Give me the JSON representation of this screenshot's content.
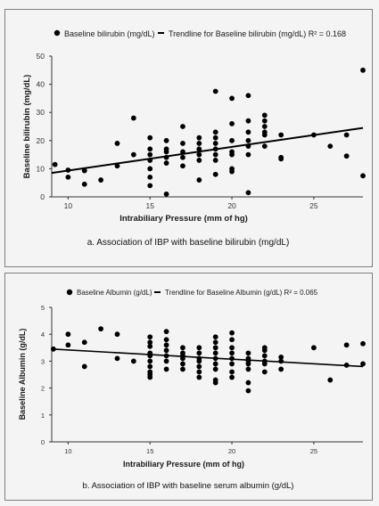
{
  "chart_data": [
    {
      "type": "scatter",
      "caption": "a. Association of IBP with baseline bilirubin (mg/dL)",
      "xlabel": "Intrabiliary Pressure (mm of hg)",
      "ylabel": "Baseline bilirubin (mg/dL)",
      "xlim": [
        9,
        28
      ],
      "ylim": [
        0,
        50
      ],
      "xticks": [
        10,
        15,
        20,
        25
      ],
      "yticks": [
        0,
        10,
        20,
        30,
        40,
        50
      ],
      "grid": false,
      "legend_position": "top",
      "legend": {
        "points": "Baseline bilirubin (mg/dL)",
        "trendline": "Trendline for Baseline bilirubin (mg/dL) R² = 0.168"
      },
      "trendline": {
        "x": [
          9,
          28
        ],
        "y": [
          8.5,
          24.5
        ]
      },
      "points": [
        [
          9.2,
          11.5
        ],
        [
          10,
          9.5
        ],
        [
          10,
          7
        ],
        [
          11,
          9.3
        ],
        [
          11,
          4.5
        ],
        [
          12,
          6
        ],
        [
          13,
          19
        ],
        [
          13,
          11
        ],
        [
          14,
          28
        ],
        [
          14,
          15
        ],
        [
          15,
          21
        ],
        [
          15,
          17
        ],
        [
          15,
          15
        ],
        [
          15,
          13
        ],
        [
          15,
          10
        ],
        [
          15,
          7
        ],
        [
          15,
          4
        ],
        [
          16,
          20
        ],
        [
          16,
          17
        ],
        [
          16,
          16
        ],
        [
          16,
          14
        ],
        [
          16,
          12
        ],
        [
          16,
          1
        ],
        [
          17,
          25
        ],
        [
          17,
          19
        ],
        [
          17,
          16
        ],
        [
          17,
          14
        ],
        [
          17,
          11
        ],
        [
          18,
          21
        ],
        [
          18,
          19
        ],
        [
          18,
          17
        ],
        [
          18,
          15
        ],
        [
          18,
          13
        ],
        [
          18,
          6
        ],
        [
          19,
          37.5
        ],
        [
          19,
          23
        ],
        [
          19,
          21
        ],
        [
          19,
          19
        ],
        [
          19,
          17
        ],
        [
          19,
          15
        ],
        [
          19,
          13
        ],
        [
          19,
          8
        ],
        [
          20,
          35
        ],
        [
          20,
          26
        ],
        [
          20,
          20
        ],
        [
          20,
          16
        ],
        [
          20,
          15
        ],
        [
          20,
          10
        ],
        [
          20,
          9
        ],
        [
          21,
          36
        ],
        [
          21,
          27
        ],
        [
          21,
          23
        ],
        [
          21,
          20
        ],
        [
          21,
          18
        ],
        [
          21,
          15
        ],
        [
          21,
          1.5
        ],
        [
          22,
          29
        ],
        [
          22,
          27
        ],
        [
          22,
          25
        ],
        [
          22,
          23
        ],
        [
          22,
          22
        ],
        [
          22,
          18
        ],
        [
          23,
          22
        ],
        [
          23,
          14
        ],
        [
          23,
          13.5
        ],
        [
          25,
          22
        ],
        [
          26,
          18
        ],
        [
          27,
          22
        ],
        [
          27,
          14.5
        ],
        [
          28,
          45
        ],
        [
          28,
          7.5
        ]
      ]
    },
    {
      "type": "scatter",
      "caption": "b. Association of IBP with baseline serum albumin (g/dL)",
      "xlabel": "Intrabiliary Pressure (mm of hg)",
      "ylabel": "Baseline Albumin (g/dL)",
      "xlim": [
        9,
        28
      ],
      "ylim": [
        0,
        5
      ],
      "xticks": [
        10,
        15,
        20,
        25
      ],
      "yticks": [
        0,
        1,
        2,
        3,
        4,
        5
      ],
      "grid": false,
      "legend_position": "top",
      "legend": {
        "points": "Baseline Albumin (g/dL)",
        "trendline": "Trendline for Baseline Albumin (g/dL) R² = 0.065"
      },
      "trendline": {
        "x": [
          9,
          28
        ],
        "y": [
          3.45,
          2.8
        ]
      },
      "points": [
        [
          9.1,
          3.45
        ],
        [
          10,
          4.0
        ],
        [
          10,
          3.6
        ],
        [
          11,
          3.7
        ],
        [
          11,
          2.8
        ],
        [
          12,
          4.2
        ],
        [
          13,
          4.0
        ],
        [
          13,
          3.1
        ],
        [
          14,
          3.0
        ],
        [
          15,
          3.9
        ],
        [
          15,
          3.7
        ],
        [
          15,
          3.55
        ],
        [
          15,
          3.3
        ],
        [
          15,
          3.2
        ],
        [
          15,
          3.0
        ],
        [
          15,
          2.8
        ],
        [
          15,
          2.6
        ],
        [
          15,
          2.5
        ],
        [
          15,
          2.4
        ],
        [
          16,
          4.1
        ],
        [
          16,
          3.8
        ],
        [
          16,
          3.6
        ],
        [
          16,
          3.4
        ],
        [
          16,
          3.2
        ],
        [
          16,
          3.0
        ],
        [
          16,
          2.7
        ],
        [
          17,
          3.5
        ],
        [
          17,
          3.3
        ],
        [
          17,
          3.2
        ],
        [
          17,
          3.1
        ],
        [
          17,
          2.9
        ],
        [
          17,
          2.7
        ],
        [
          18,
          3.5
        ],
        [
          18,
          3.3
        ],
        [
          18,
          3.1
        ],
        [
          18,
          3.0
        ],
        [
          18,
          2.8
        ],
        [
          18,
          2.6
        ],
        [
          18,
          2.4
        ],
        [
          19,
          3.9
        ],
        [
          19,
          3.7
        ],
        [
          19,
          3.5
        ],
        [
          19,
          3.3
        ],
        [
          19,
          3.1
        ],
        [
          19,
          2.9
        ],
        [
          19,
          2.7
        ],
        [
          19,
          2.3
        ],
        [
          19,
          2.2
        ],
        [
          20,
          4.05
        ],
        [
          20,
          3.8
        ],
        [
          20,
          3.5
        ],
        [
          20,
          3.3
        ],
        [
          20,
          3.1
        ],
        [
          20,
          2.9
        ],
        [
          20,
          2.6
        ],
        [
          20,
          2.4
        ],
        [
          21,
          3.3
        ],
        [
          21,
          3.1
        ],
        [
          21,
          3.0
        ],
        [
          21,
          2.9
        ],
        [
          21,
          2.7
        ],
        [
          21,
          2.2
        ],
        [
          21,
          1.9
        ],
        [
          22,
          3.5
        ],
        [
          22,
          3.4
        ],
        [
          22,
          3.2
        ],
        [
          22,
          3.0
        ],
        [
          22,
          2.9
        ],
        [
          22,
          2.6
        ],
        [
          23,
          3.15
        ],
        [
          23,
          3.0
        ],
        [
          23,
          2.7
        ],
        [
          25,
          3.5
        ],
        [
          26,
          2.3
        ],
        [
          27,
          3.6
        ],
        [
          27,
          2.85
        ],
        [
          28,
          3.65
        ],
        [
          28,
          2.9
        ]
      ]
    }
  ]
}
